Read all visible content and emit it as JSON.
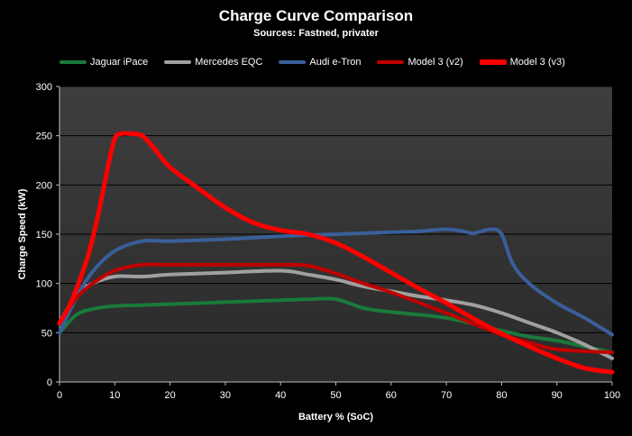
{
  "chart_data": {
    "type": "line",
    "title": "Charge Curve Comparison",
    "subtitle": "Sources: Fastned, privater",
    "xlabel": "Battery % (SoC)",
    "ylabel": "Charge Speed (kW)",
    "xlim": [
      0,
      100
    ],
    "ylim": [
      0,
      300
    ],
    "xticks": [
      0,
      10,
      20,
      30,
      40,
      50,
      60,
      70,
      80,
      90,
      100
    ],
    "yticks": [
      0,
      50,
      100,
      150,
      200,
      250,
      300
    ],
    "grid": "horizontal",
    "legend_position": "top",
    "series": [
      {
        "name": "Jaguar iPace",
        "color": "#1a7a3a",
        "x": [
          0,
          3,
          6,
          10,
          15,
          20,
          30,
          40,
          45,
          50,
          55,
          60,
          70,
          80,
          85,
          90,
          95,
          100
        ],
        "y": [
          50,
          68,
          74,
          77,
          78,
          79,
          81,
          83,
          84,
          84,
          75,
          71,
          65,
          52,
          46,
          42,
          36,
          30
        ]
      },
      {
        "name": "Mercedes EQC",
        "color": "#a0a0a0",
        "x": [
          0,
          3,
          6,
          10,
          15,
          20,
          30,
          40,
          45,
          50,
          55,
          60,
          65,
          70,
          75,
          80,
          85,
          90,
          95,
          100
        ],
        "y": [
          60,
          88,
          100,
          107,
          107,
          109,
          111,
          113,
          109,
          104,
          97,
          92,
          87,
          83,
          78,
          70,
          60,
          50,
          38,
          24
        ]
      },
      {
        "name": "Audi e-Tron",
        "color": "#3a5f9a",
        "x": [
          0,
          3,
          6,
          10,
          15,
          20,
          30,
          40,
          50,
          60,
          65,
          70,
          73,
          75,
          78,
          80,
          82,
          85,
          90,
          95,
          100
        ],
        "y": [
          50,
          85,
          112,
          133,
          143,
          143,
          145,
          148,
          150,
          152,
          153,
          155,
          153,
          151,
          155,
          150,
          120,
          100,
          80,
          65,
          48
        ]
      },
      {
        "name": "Model 3 (v2)",
        "color": "#c00000",
        "x": [
          0,
          3,
          6,
          10,
          15,
          20,
          30,
          40,
          45,
          50,
          55,
          60,
          70,
          80,
          85,
          90,
          100
        ],
        "y": [
          60,
          85,
          100,
          113,
          119,
          119,
          119,
          119,
          118,
          110,
          100,
          91,
          70,
          48,
          40,
          33,
          30
        ]
      },
      {
        "name": "Model 3 (v3)",
        "color": "#ff0000",
        "x": [
          0,
          2,
          5,
          7,
          9,
          10,
          11,
          13,
          15,
          17,
          20,
          25,
          30,
          35,
          40,
          45,
          50,
          55,
          60,
          65,
          70,
          75,
          80,
          85,
          90,
          95,
          100
        ],
        "y": [
          60,
          80,
          125,
          170,
          225,
          247,
          252,
          252,
          250,
          238,
          218,
          197,
          177,
          162,
          154,
          150,
          141,
          127,
          111,
          95,
          80,
          64,
          49,
          36,
          24,
          14,
          10
        ]
      }
    ]
  }
}
